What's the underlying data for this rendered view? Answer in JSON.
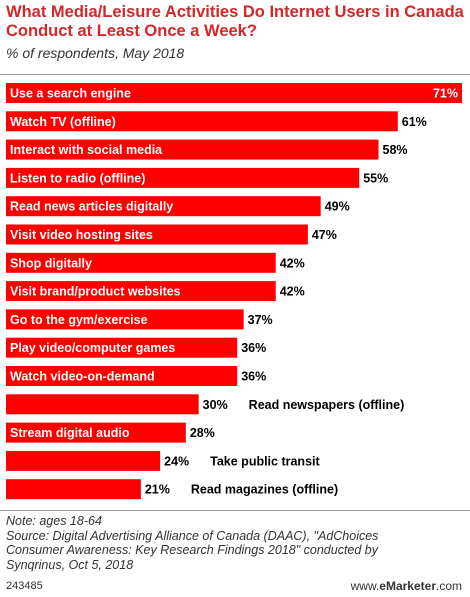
{
  "header": {
    "title": "What Media/Leisure Activities Do Internet Users in Canada Conduct at Least Once a Week?",
    "subtitle": "% of respondents, May 2018"
  },
  "chart_data": {
    "type": "bar",
    "orientation": "horizontal",
    "categories": [
      "Use a search engine",
      "Watch TV (offline)",
      "Interact with social media",
      "Listen to radio (offline)",
      "Read news articles digitally",
      "Visit video hosting sites",
      "Shop digitally",
      "Visit brand/product websites",
      "Go to the gym/exercise",
      "Play video/computer games",
      "Watch video-on-demand",
      "Read newspapers (offline)",
      "Stream digital audio",
      "Take public transit",
      "Read magazines (offline)"
    ],
    "values": [
      71,
      61,
      58,
      55,
      49,
      47,
      42,
      42,
      37,
      36,
      36,
      30,
      28,
      24,
      21
    ],
    "value_suffix": "%",
    "bar_color": "#ff0000",
    "xlim": [
      0,
      71
    ]
  },
  "footer": {
    "note": "Note: ages 18-64",
    "source_line1": "Source: Digital Advertising Alliance of Canada (DAAC), \"AdChoices",
    "source_line2": "Consumer Awareness: Key Research Findings 2018\" conducted by",
    "source_line3": "Synqrinus, Oct 5, 2018",
    "chart_id": "243485",
    "brand_prefix": "www.",
    "brand_name": "eMarketer",
    "brand_suffix": ".com"
  }
}
